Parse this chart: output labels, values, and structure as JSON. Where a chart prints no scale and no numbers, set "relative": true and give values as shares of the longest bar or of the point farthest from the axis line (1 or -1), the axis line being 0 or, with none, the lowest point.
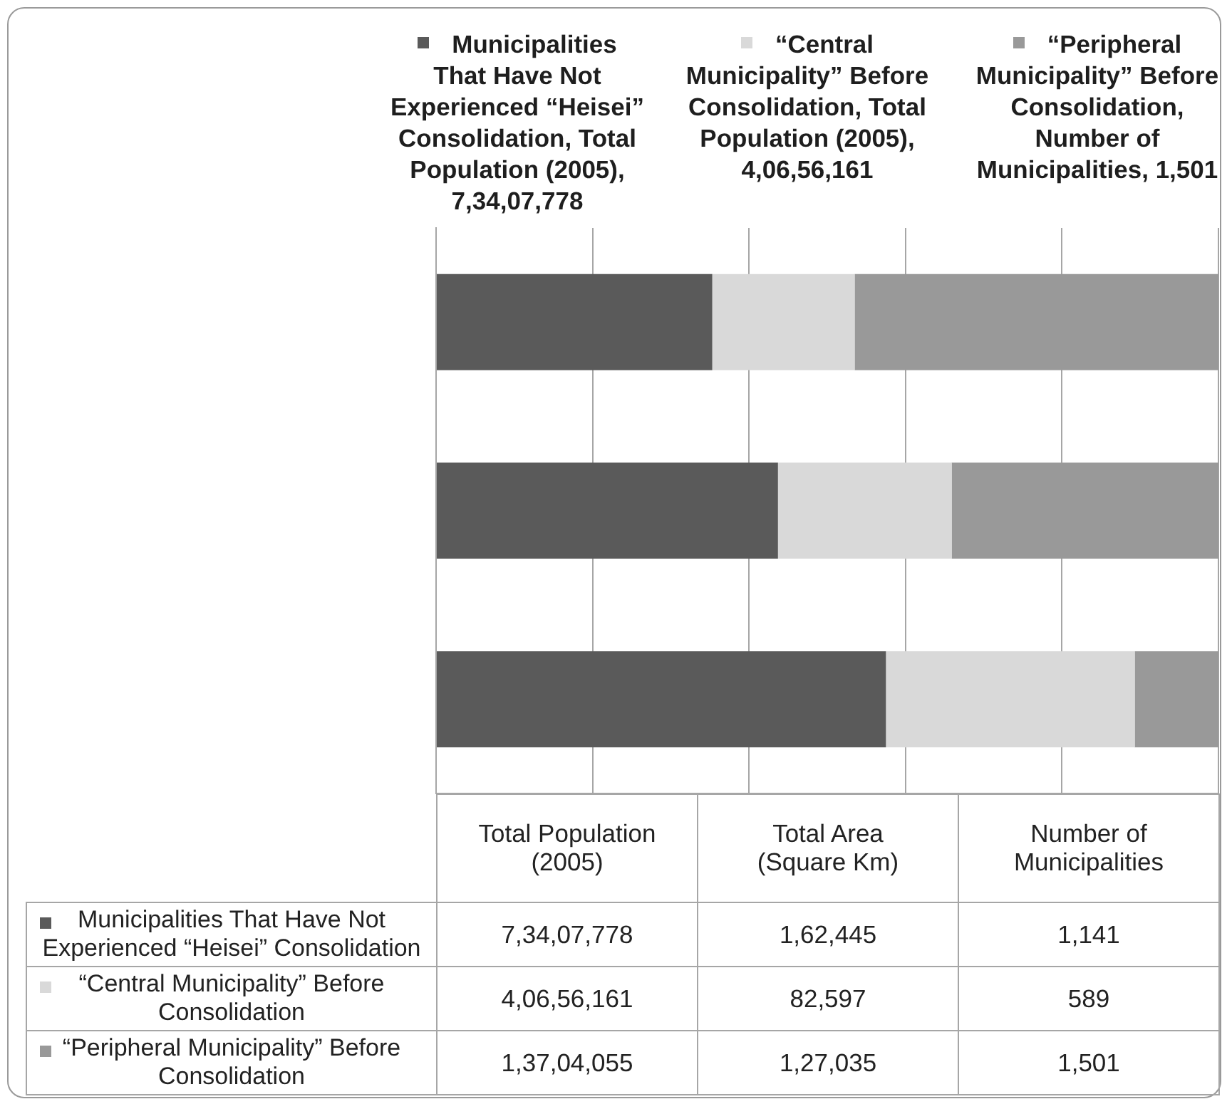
{
  "chart_data": [
    {
      "type": "bar",
      "orientation": "horizontal",
      "stacked": true,
      "relative": true,
      "categories": [
        null,
        null,
        null
      ],
      "series": [
        {
          "color": "#5a5a5a",
          "values": [
            0.353,
            0.437,
            0.575
          ]
        },
        {
          "color": "#d9d9d9",
          "values": [
            0.182,
            0.222,
            0.318
          ]
        },
        {
          "color": "#999999",
          "values": [
            0.465,
            0.341,
            0.107
          ]
        }
      ],
      "annotations": [
        "Municipalities That Have Not Experienced “Heisei” Consolidation, Total Population (2005), 7,34,07,778",
        "“Central Municipality” Before Consolidation, Total Population (2005), 4,06,56,161",
        "“Peripheral Municipality” Before Consolidation, Number of Municipalities, 1,501"
      ],
      "grid": "x"
    },
    {
      "type": "other",
      "categories": [
        "Total Population (2005)",
        "Total Area (Square Km)",
        "Number of Municipalities"
      ],
      "y_categories": [
        "Municipalities That Have Not Experienced “Heisei” Consolidation",
        "“Central Municipality” Before Consolidation",
        "“Peripheral Municipality” Before Consolidation"
      ],
      "cell_labels": [
        [
          "7,34,07,778",
          "1,62,445",
          "1,141"
        ],
        [
          "4,06,56,161",
          "82,597",
          "589"
        ],
        [
          "1,37,04,055",
          "1,27,035",
          "1,501"
        ]
      ]
    }
  ]
}
